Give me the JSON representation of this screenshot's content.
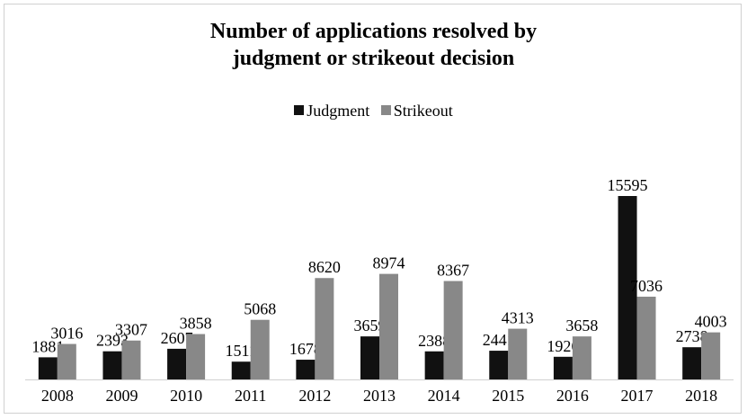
{
  "chart_data": {
    "type": "bar",
    "title_lines": [
      "Number of applications resolved by",
      "judgment or strikeout decision"
    ],
    "categories": [
      "2008",
      "2009",
      "2010",
      "2011",
      "2012",
      "2013",
      "2014",
      "2015",
      "2016",
      "2017",
      "2018"
    ],
    "series": [
      {
        "name": "Judgment",
        "color": "#111111",
        "values": [
          1881,
          2393,
          2607,
          1511,
          1678,
          3659,
          2388,
          2441,
          1926,
          15595,
          2738
        ],
        "labels": [
          "1881",
          "2393",
          "2607",
          "1511",
          "1678",
          "3659",
          "2388",
          "2441",
          "1926",
          "15595",
          "2738"
        ]
      },
      {
        "name": "Strikeout",
        "color": "#888888",
        "values": [
          3016,
          3307,
          3858,
          5068,
          8620,
          8974,
          8367,
          4313,
          3658,
          7036,
          4003
        ],
        "labels": [
          "3016",
          "3307",
          "3858",
          "5068",
          "8620",
          "8974",
          "8367",
          "4313",
          "3658",
          "7036",
          "4003"
        ]
      }
    ],
    "xlabel": "",
    "ylabel": "",
    "ylim": [
      0,
      16000
    ],
    "grid": false,
    "legend": "top-center"
  }
}
